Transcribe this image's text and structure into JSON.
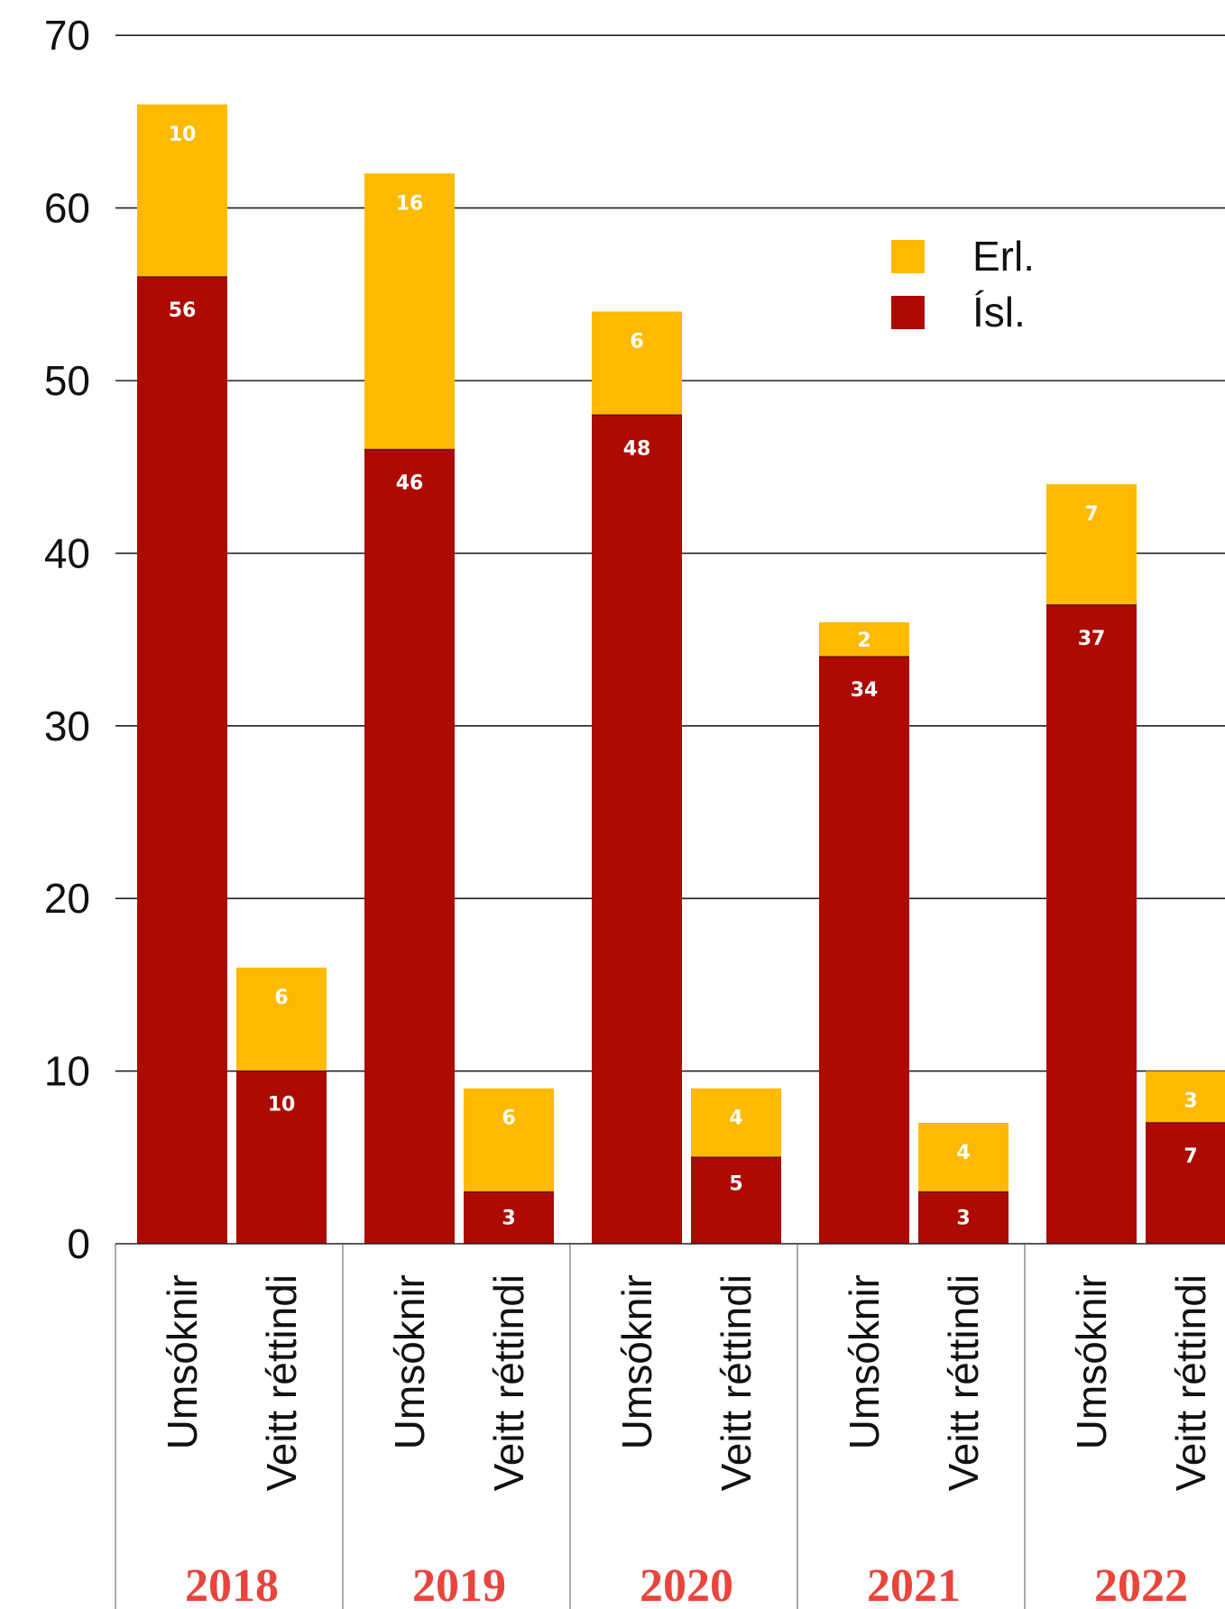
{
  "chart_data": {
    "type": "bar",
    "stacked": true,
    "ylim": [
      0,
      70
    ],
    "yticks": [
      0,
      10,
      20,
      30,
      40,
      50,
      60,
      70
    ],
    "grid": true,
    "legend_position": "top-right",
    "groups": [
      "2018",
      "2019",
      "2020",
      "2021",
      "2022"
    ],
    "categories": [
      "Umsóknir",
      "Veitt réttindi"
    ],
    "series": [
      {
        "name": "Ísl.",
        "color": "#ac0a02",
        "values": [
          [
            56,
            10
          ],
          [
            46,
            3
          ],
          [
            48,
            5
          ],
          [
            34,
            3
          ],
          [
            37,
            7
          ]
        ]
      },
      {
        "name": "Erl.",
        "color": "#fdba00",
        "values": [
          [
            10,
            6
          ],
          [
            16,
            6
          ],
          [
            6,
            4
          ],
          [
            2,
            4
          ],
          [
            7,
            3
          ]
        ]
      }
    ],
    "legend_order": [
      "Erl.",
      "Ísl."
    ],
    "group_label_color": "#e8453c",
    "grid_color": "#222222",
    "bar_label_color": "#ffffff"
  }
}
